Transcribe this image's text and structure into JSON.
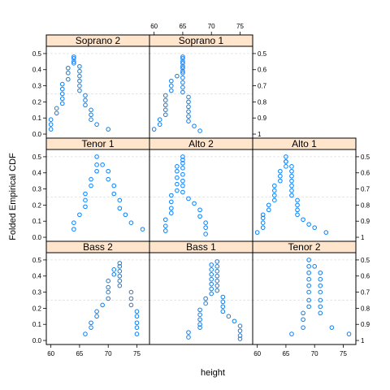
{
  "chart_data": {
    "type": "scatter",
    "xlabel": "height",
    "ylabel": "Folded Empirical CDF",
    "xlim": [
      59.2,
      77.2
    ],
    "ylim": [
      -0.025,
      0.545
    ],
    "x_ticks": [
      60,
      65,
      70,
      75
    ],
    "y_ticks_left": [
      "0.0",
      "0.1",
      "0.2",
      "0.3",
      "0.4",
      "0.5"
    ],
    "y_ticks_right": [
      "0.5",
      "0.6",
      "0.7",
      "0.8",
      "0.9",
      "1"
    ],
    "grid": "dashed reference lines at 0.25 and 0.5",
    "panels": [
      {
        "name": "Soprano 2",
        "row": 0,
        "col": 0,
        "points": [
          [
            60,
            0.03
          ],
          [
            60,
            0.06
          ],
          [
            60,
            0.09
          ],
          [
            61,
            0.13
          ],
          [
            61,
            0.16
          ],
          [
            62,
            0.19
          ],
          [
            62,
            0.22
          ],
          [
            62,
            0.25
          ],
          [
            62,
            0.28
          ],
          [
            62,
            0.31
          ],
          [
            63,
            0.34
          ],
          [
            63,
            0.38
          ],
          [
            63,
            0.41
          ],
          [
            64,
            0.44
          ],
          [
            64,
            0.47
          ],
          [
            64,
            0.48
          ],
          [
            64,
            0.45
          ],
          [
            65,
            0.42
          ],
          [
            65,
            0.39
          ],
          [
            65,
            0.36
          ],
          [
            65,
            0.33
          ],
          [
            65,
            0.3
          ],
          [
            65,
            0.27
          ],
          [
            66,
            0.24
          ],
          [
            66,
            0.21
          ],
          [
            66,
            0.18
          ],
          [
            67,
            0.15
          ],
          [
            67,
            0.12
          ],
          [
            67,
            0.09
          ],
          [
            68,
            0.06
          ],
          [
            70,
            0.03
          ]
        ]
      },
      {
        "name": "Soprano 1",
        "row": 0,
        "col": 1,
        "points": [
          [
            60,
            0.03
          ],
          [
            61,
            0.06
          ],
          [
            61,
            0.09
          ],
          [
            62,
            0.12
          ],
          [
            62,
            0.15
          ],
          [
            62,
            0.18
          ],
          [
            62,
            0.21
          ],
          [
            62,
            0.24
          ],
          [
            63,
            0.27
          ],
          [
            63,
            0.3
          ],
          [
            63,
            0.33
          ],
          [
            64,
            0.36
          ],
          [
            65,
            0.39
          ],
          [
            65,
            0.42
          ],
          [
            65,
            0.45
          ],
          [
            65,
            0.48
          ],
          [
            65,
            0.47
          ],
          [
            65,
            0.44
          ],
          [
            65,
            0.41
          ],
          [
            65,
            0.38
          ],
          [
            65,
            0.35
          ],
          [
            65,
            0.32
          ],
          [
            65,
            0.29
          ],
          [
            65,
            0.26
          ],
          [
            66,
            0.23
          ],
          [
            66,
            0.2
          ],
          [
            66,
            0.17
          ],
          [
            66,
            0.14
          ],
          [
            66,
            0.11
          ],
          [
            66,
            0.08
          ],
          [
            67,
            0.05
          ],
          [
            68,
            0.02
          ]
        ]
      },
      {
        "name": "Tenor 1",
        "row": 1,
        "col": 0,
        "points": [
          [
            64,
            0.05
          ],
          [
            64,
            0.09
          ],
          [
            65,
            0.14
          ],
          [
            66,
            0.19
          ],
          [
            66,
            0.23
          ],
          [
            66,
            0.27
          ],
          [
            67,
            0.32
          ],
          [
            67,
            0.36
          ],
          [
            68,
            0.41
          ],
          [
            68,
            0.45
          ],
          [
            68,
            0.5
          ],
          [
            69,
            0.45
          ],
          [
            70,
            0.41
          ],
          [
            70,
            0.36
          ],
          [
            71,
            0.32
          ],
          [
            71,
            0.27
          ],
          [
            72,
            0.23
          ],
          [
            72,
            0.18
          ],
          [
            73,
            0.14
          ],
          [
            74,
            0.09
          ],
          [
            76,
            0.05
          ]
        ]
      },
      {
        "name": "Alto 2",
        "row": 1,
        "col": 1,
        "points": [
          [
            62,
            0.04
          ],
          [
            62,
            0.07
          ],
          [
            62,
            0.11
          ],
          [
            63,
            0.15
          ],
          [
            63,
            0.18
          ],
          [
            63,
            0.22
          ],
          [
            63,
            0.26
          ],
          [
            64,
            0.29
          ],
          [
            64,
            0.33
          ],
          [
            64,
            0.37
          ],
          [
            64,
            0.41
          ],
          [
            64,
            0.44
          ],
          [
            65,
            0.48
          ],
          [
            65,
            0.5
          ],
          [
            65,
            0.46
          ],
          [
            65,
            0.43
          ],
          [
            65,
            0.39
          ],
          [
            65,
            0.35
          ],
          [
            65,
            0.32
          ],
          [
            65,
            0.28
          ],
          [
            66,
            0.24
          ],
          [
            67,
            0.21
          ],
          [
            68,
            0.17
          ],
          [
            68,
            0.13
          ],
          [
            69,
            0.09
          ],
          [
            69,
            0.06
          ],
          [
            69,
            0.02
          ]
        ]
      },
      {
        "name": "Alto 1",
        "row": 1,
        "col": 2,
        "points": [
          [
            60,
            0.03
          ],
          [
            61,
            0.06
          ],
          [
            61,
            0.09
          ],
          [
            61,
            0.12
          ],
          [
            61,
            0.14
          ],
          [
            62,
            0.17
          ],
          [
            62,
            0.2
          ],
          [
            63,
            0.23
          ],
          [
            63,
            0.26
          ],
          [
            63,
            0.29
          ],
          [
            63,
            0.32
          ],
          [
            64,
            0.35
          ],
          [
            64,
            0.38
          ],
          [
            64,
            0.41
          ],
          [
            65,
            0.44
          ],
          [
            65,
            0.47
          ],
          [
            65,
            0.5
          ],
          [
            65,
            0.47
          ],
          [
            66,
            0.44
          ],
          [
            66,
            0.41
          ],
          [
            66,
            0.38
          ],
          [
            66,
            0.35
          ],
          [
            66,
            0.32
          ],
          [
            66,
            0.29
          ],
          [
            66,
            0.26
          ],
          [
            67,
            0.23
          ],
          [
            67,
            0.2
          ],
          [
            67,
            0.17
          ],
          [
            67,
            0.14
          ],
          [
            68,
            0.11
          ],
          [
            69,
            0.08
          ],
          [
            70,
            0.06
          ],
          [
            72,
            0.03
          ]
        ]
      },
      {
        "name": "Bass 2",
        "row": 2,
        "col": 0,
        "points": [
          [
            66,
            0.04
          ],
          [
            67,
            0.08
          ],
          [
            67,
            0.11
          ],
          [
            68,
            0.15
          ],
          [
            68,
            0.18
          ],
          [
            69,
            0.22
          ],
          [
            70,
            0.26
          ],
          [
            70,
            0.3
          ],
          [
            70,
            0.33
          ],
          [
            70,
            0.37
          ],
          [
            71,
            0.41
          ],
          [
            71,
            0.44
          ],
          [
            72,
            0.48
          ],
          [
            72,
            0.46
          ],
          [
            72,
            0.43
          ],
          [
            72,
            0.4
          ],
          [
            72,
            0.37
          ],
          [
            72,
            0.34
          ],
          [
            74,
            0.3
          ],
          [
            74,
            0.26
          ],
          [
            74,
            0.22
          ],
          [
            75,
            0.18
          ],
          [
            75,
            0.15
          ],
          [
            75,
            0.11
          ],
          [
            75,
            0.08
          ],
          [
            75,
            0.04
          ]
        ]
      },
      {
        "name": "Bass 1",
        "row": 2,
        "col": 1,
        "points": [
          [
            66,
            0.02
          ],
          [
            66,
            0.05
          ],
          [
            68,
            0.08
          ],
          [
            68,
            0.1
          ],
          [
            68,
            0.13
          ],
          [
            68,
            0.16
          ],
          [
            68,
            0.19
          ],
          [
            69,
            0.23
          ],
          [
            69,
            0.26
          ],
          [
            70,
            0.29
          ],
          [
            70,
            0.32
          ],
          [
            70,
            0.35
          ],
          [
            70,
            0.38
          ],
          [
            70,
            0.41
          ],
          [
            70,
            0.44
          ],
          [
            70,
            0.47
          ],
          [
            71,
            0.49
          ],
          [
            71,
            0.46
          ],
          [
            71,
            0.43
          ],
          [
            71,
            0.4
          ],
          [
            71,
            0.37
          ],
          [
            71,
            0.34
          ],
          [
            71,
            0.31
          ],
          [
            72,
            0.27
          ],
          [
            72,
            0.24
          ],
          [
            72,
            0.21
          ],
          [
            72,
            0.18
          ],
          [
            73,
            0.15
          ],
          [
            74,
            0.12
          ],
          [
            75,
            0.09
          ],
          [
            75,
            0.06
          ],
          [
            75,
            0.03
          ],
          [
            75,
            0.01
          ]
        ]
      },
      {
        "name": "Tenor 2",
        "row": 2,
        "col": 2,
        "points": [
          [
            66,
            0.04
          ],
          [
            68,
            0.08
          ],
          [
            68,
            0.13
          ],
          [
            68,
            0.17
          ],
          [
            69,
            0.21
          ],
          [
            69,
            0.25
          ],
          [
            69,
            0.3
          ],
          [
            69,
            0.34
          ],
          [
            69,
            0.38
          ],
          [
            69,
            0.42
          ],
          [
            69,
            0.46
          ],
          [
            69,
            0.5
          ],
          [
            70,
            0.46
          ],
          [
            71,
            0.42
          ],
          [
            71,
            0.38
          ],
          [
            71,
            0.34
          ],
          [
            71,
            0.3
          ],
          [
            71,
            0.25
          ],
          [
            71,
            0.21
          ],
          [
            71,
            0.17
          ],
          [
            73,
            0.08
          ],
          [
            76,
            0.04
          ]
        ]
      }
    ]
  }
}
